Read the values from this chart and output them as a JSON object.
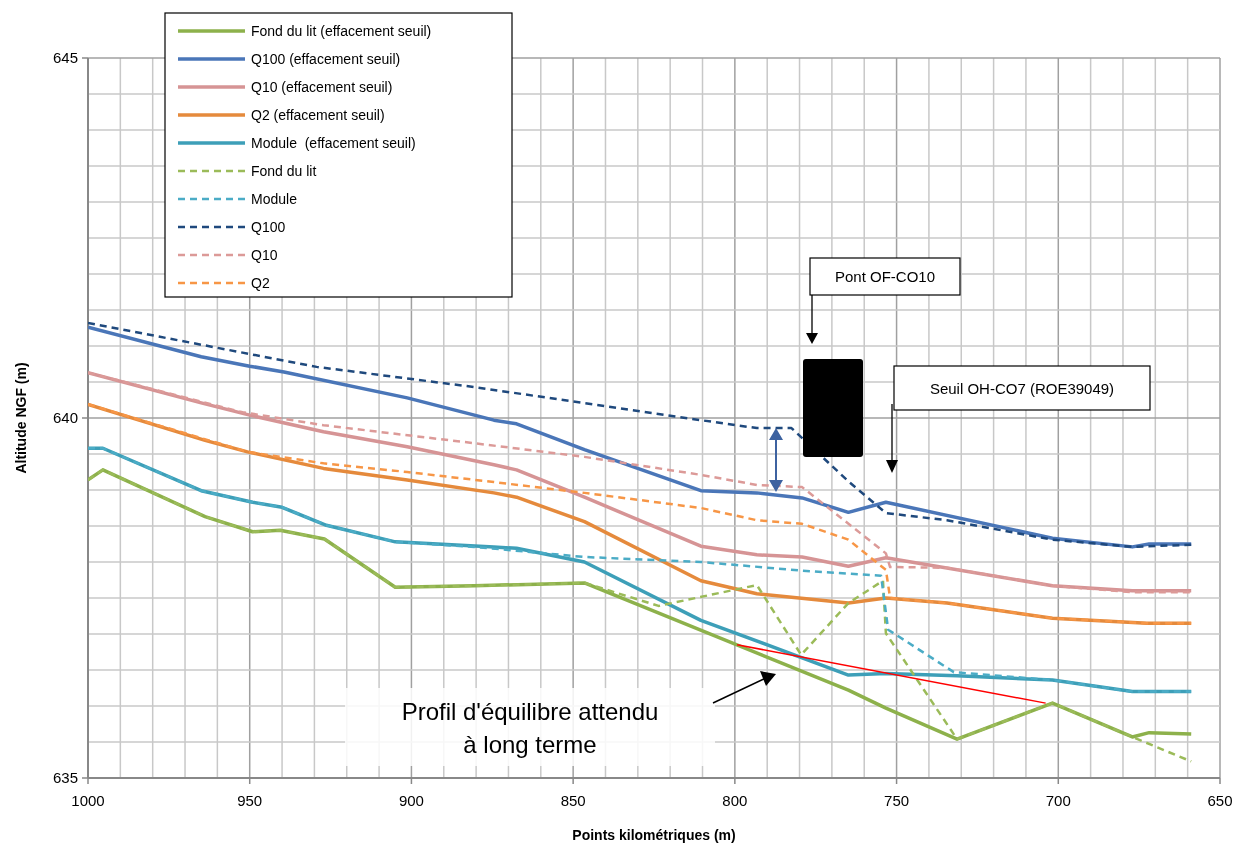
{
  "chart_data": {
    "type": "line",
    "xlabel": "Points kilométriques (m)",
    "ylabel": "Altitude NGF (m)",
    "xlim": [
      1000,
      650
    ],
    "ylim": [
      635,
      645
    ],
    "xticks": [
      1000,
      {
        "value": 990,
        "label": null
      },
      {
        "value": 980,
        "label": null
      },
      {
        "value": 970,
        "label": null
      },
      {
        "value": 960,
        "label": null
      },
      950,
      {
        "value": 940,
        "label": null
      },
      {
        "value": 930,
        "label": null
      },
      {
        "value": 920,
        "label": null
      },
      {
        "value": 910,
        "label": null
      },
      900,
      {
        "value": 890,
        "label": null
      },
      {
        "value": 880,
        "label": null
      },
      {
        "value": 870,
        "label": null
      },
      {
        "value": 860,
        "label": null
      },
      850,
      {
        "value": 840,
        "label": null
      },
      {
        "value": 830,
        "label": null
      },
      {
        "value": 820,
        "label": null
      },
      {
        "value": 810,
        "label": null
      },
      800,
      {
        "value": 790,
        "label": null
      },
      {
        "value": 780,
        "label": null
      },
      {
        "value": 770,
        "label": null
      },
      {
        "value": 760,
        "label": null
      },
      750,
      {
        "value": 740,
        "label": null
      },
      {
        "value": 730,
        "label": null
      },
      {
        "value": 720,
        "label": null
      },
      {
        "value": 710,
        "label": null
      },
      700,
      {
        "value": 690,
        "label": null
      },
      {
        "value": 680,
        "label": null
      },
      {
        "value": 670,
        "label": null
      },
      {
        "value": 660,
        "label": null
      },
      650
    ],
    "yticks": [
      635,
      {
        "value": 635.5,
        "label": null
      },
      {
        "value": 636,
        "label": null
      },
      {
        "value": 636.5,
        "label": null
      },
      {
        "value": 637,
        "label": null
      },
      {
        "value": 637.5,
        "label": null
      },
      {
        "value": 638,
        "label": null
      },
      {
        "value": 638.5,
        "label": null
      },
      {
        "value": 639,
        "label": null
      },
      {
        "value": 639.5,
        "label": null
      },
      640,
      {
        "value": 640.5,
        "label": null
      },
      {
        "value": 641,
        "label": null
      },
      {
        "value": 641.5,
        "label": null
      },
      {
        "value": 642,
        "label": null
      },
      {
        "value": 642.5,
        "label": null
      },
      {
        "value": 643,
        "label": null
      },
      {
        "value": 643.5,
        "label": null
      },
      {
        "value": 644,
        "label": null
      },
      {
        "value": 644.5,
        "label": null
      },
      645
    ],
    "grid": true,
    "legend": "top left",
    "marker": "none",
    "annotations": [
      "Pont OF-CO10",
      "Seuil OH-CO7 (ROE39049)",
      "Profil d'équilibre attendu à long terme"
    ],
    "series": [
      {
        "name": "Fond du lit (effacement seuil)",
        "color": "#8db14b",
        "line_style": "solid",
        "x": [
          1000,
          995.4,
          963.8,
          949.1,
          940.6,
          926.9,
          905,
          880.6,
          846.5,
          764.9,
          753.3,
          731.3,
          701.8,
          677.1,
          671.9,
          658.9
        ],
        "values": [
          639.14,
          639.28,
          638.63,
          638.42,
          638.44,
          638.32,
          637.65,
          637.67,
          637.71,
          636.22,
          635.97,
          635.54,
          636.04,
          635.57,
          635.63,
          635.61
        ]
      },
      {
        "name": "Q100 (effacement seuil)",
        "color": "#4a76b8",
        "line_style": "solid",
        "x": [
          1000,
          965,
          950,
          939.4,
          901.3,
          874.5,
          867.5,
          846.5,
          810.5,
          793.2,
          779.2,
          764.9,
          753.3,
          701.8,
          677.1,
          671.9,
          658.9
        ],
        "values": [
          641.26,
          640.85,
          640.72,
          640.64,
          640.28,
          639.97,
          639.92,
          639.56,
          638.99,
          638.96,
          638.89,
          638.69,
          638.83,
          638.33,
          638.21,
          638.25,
          638.25
        ]
      },
      {
        "name": "Q10 (effacement seuil)",
        "color": "#d69495",
        "line_style": "solid",
        "x": [
          1000,
          965,
          950,
          927.2,
          901.3,
          874.5,
          867.5,
          846.5,
          810.5,
          793.2,
          779.2,
          764.9,
          753.3,
          701.8,
          677.1,
          658.9
        ],
        "values": [
          640.63,
          640.21,
          640.04,
          639.81,
          639.6,
          639.35,
          639.28,
          638.9,
          638.22,
          638.1,
          638.07,
          637.94,
          638.06,
          637.67,
          637.6,
          637.6
        ]
      },
      {
        "name": "Q2 (effacement seuil)",
        "color": "#e58a3c",
        "line_style": "solid",
        "x": [
          1000,
          963.8,
          950.7,
          927.2,
          901.3,
          874.5,
          867.5,
          846.5,
          810.5,
          793.2,
          764.9,
          753.3,
          734.4,
          701.8,
          672.6,
          658.9
        ],
        "values": [
          640.19,
          639.69,
          639.53,
          639.3,
          639.14,
          638.96,
          638.9,
          638.56,
          637.74,
          637.56,
          637.43,
          637.5,
          637.43,
          637.22,
          637.15,
          637.15
        ]
      },
      {
        "name": "Module  (effacement seuil)",
        "color": "#3d9fb8",
        "line_style": "solid",
        "x": [
          1000,
          995.4,
          965,
          949.1,
          940,
          926.3,
          905,
          874.5,
          867.5,
          846.5,
          810.5,
          764.9,
          753.3,
          731.3,
          701.8,
          677.1,
          658.9
        ],
        "values": [
          639.58,
          639.58,
          638.99,
          638.83,
          638.76,
          638.51,
          638.28,
          638.21,
          638.19,
          638.0,
          637.19,
          636.43,
          636.45,
          636.42,
          636.36,
          636.2,
          636.2
        ]
      },
      {
        "name": "Fond du lit",
        "color": "#9bbb59",
        "line_style": "dashed",
        "x": [
          1000,
          995.4,
          963.8,
          949.1,
          940.6,
          926.9,
          905,
          880.6,
          846.5,
          823.6,
          793.2,
          779.5,
          764.9,
          754.2,
          753.3,
          731.3,
          701.8,
          677.1,
          658.9
        ],
        "values": [
          639.14,
          639.28,
          638.63,
          638.42,
          638.44,
          638.32,
          637.65,
          637.67,
          637.71,
          637.39,
          637.68,
          636.71,
          637.43,
          637.74,
          637.01,
          635.54,
          636.04,
          635.57,
          635.23
        ]
      },
      {
        "name": "Module",
        "color": "#4bacc6",
        "line_style": "dashed",
        "x": [
          1000,
          995.4,
          965,
          949.1,
          940,
          926.3,
          905,
          880.6,
          846.5,
          810.5,
          779.2,
          754.8,
          752.6,
          732.3,
          701.8,
          677.1,
          658.9
        ],
        "values": [
          639.58,
          639.58,
          638.99,
          638.83,
          638.76,
          638.51,
          638.28,
          638.21,
          638.07,
          638.0,
          637.88,
          637.81,
          637.06,
          636.47,
          636.36,
          636.2,
          636.2
        ]
      },
      {
        "name": "Q100",
        "color": "#1f497d",
        "line_style": "dashed",
        "x": [
          1000,
          929.3,
          880.6,
          810.5,
          793.2,
          782.5,
          764.9,
          753.3,
          734.4,
          701.8,
          677.1,
          658.9
        ],
        "values": [
          641.32,
          640.71,
          640.43,
          639.97,
          639.86,
          639.86,
          639.12,
          638.68,
          638.58,
          638.31,
          638.21,
          638.24
        ]
      },
      {
        "name": "Q10",
        "color": "#dc9a98",
        "line_style": "dashed",
        "x": [
          1000,
          952.2,
          927.2,
          880.6,
          846.5,
          810.5,
          793.2,
          779.2,
          753.3,
          752,
          734.4,
          701.8,
          677.1,
          658.9
        ],
        "values": [
          640.63,
          640.08,
          639.9,
          639.65,
          639.46,
          639.21,
          639.07,
          639.04,
          638.12,
          637.93,
          637.92,
          637.67,
          637.58,
          637.58
        ]
      },
      {
        "name": "Q2",
        "color": "#f79646",
        "line_style": "dashed",
        "x": [
          1000,
          950.7,
          927.2,
          901.3,
          874.5,
          846.5,
          810.5,
          793.2,
          779.2,
          764.9,
          753.3,
          752,
          734.4,
          701.8,
          672.6,
          658.9
        ],
        "values": [
          640.19,
          639.53,
          639.37,
          639.25,
          639.11,
          638.96,
          638.75,
          638.58,
          638.53,
          638.31,
          637.89,
          637.5,
          637.43,
          637.22,
          637.15,
          637.15
        ]
      },
      {
        "color": "#ff0000",
        "line_style": "solid",
        "x": [
          799.3,
          703.9
        ],
        "values": [
          636.85,
          636.04
        ]
      }
    ]
  }
}
